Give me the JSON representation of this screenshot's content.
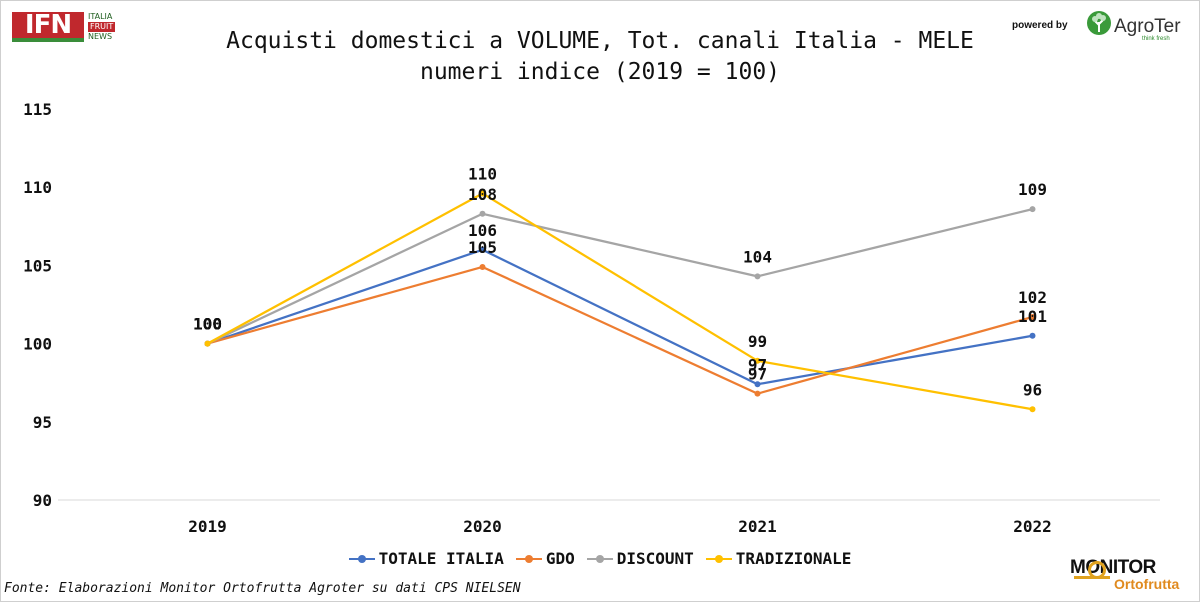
{
  "header": {
    "title_line1": "Acquisti domestici a VOLUME, Tot. canali Italia - MELE",
    "title_line2": "numeri indice (2019 = 100)",
    "powered_by": "powered by"
  },
  "logos": {
    "ifn_mark": "IFN",
    "ifn_line1": "ITALIA",
    "ifn_line2": "FRUIT",
    "ifn_line3": "NEWS",
    "agroter_name": "AgroTer",
    "agroter_tagline": "think fresh",
    "monitor_line1": "MONITOR",
    "monitor_line2": "Ortofrutta"
  },
  "footer": {
    "source": "Fonte: Elaborazioni Monitor Ortofrutta Agroter su dati CPS NIELSEN"
  },
  "chart_data": {
    "type": "line",
    "title": "Acquisti domestici a VOLUME, Tot. canali Italia - MELE",
    "subtitle": "numeri indice (2019 = 100)",
    "x": [
      "2019",
      "2020",
      "2021",
      "2022"
    ],
    "ylim": [
      90,
      115
    ],
    "yticks": [
      90,
      95,
      100,
      105,
      110,
      115
    ],
    "grid": false,
    "legend_position": "bottom",
    "series": [
      {
        "name": "TOTALE ITALIA",
        "color": "#4472c4",
        "values": [
          100,
          106.0,
          97.4,
          100.5
        ],
        "labels": [
          "100",
          "106",
          "97",
          "101"
        ]
      },
      {
        "name": "GDO",
        "color": "#ed7d31",
        "values": [
          100,
          104.9,
          96.8,
          101.7
        ],
        "labels": [
          "100",
          "105",
          "97",
          "102"
        ]
      },
      {
        "name": "DISCOUNT",
        "color": "#a5a5a5",
        "values": [
          100,
          108.3,
          104.3,
          108.6
        ],
        "labels": [
          "100",
          "108",
          "104",
          "109"
        ]
      },
      {
        "name": "TRADIZIONALE",
        "color": "#ffc000",
        "values": [
          100,
          109.6,
          98.9,
          95.8
        ],
        "labels": [
          "100",
          "110",
          "99",
          "96"
        ]
      }
    ]
  }
}
